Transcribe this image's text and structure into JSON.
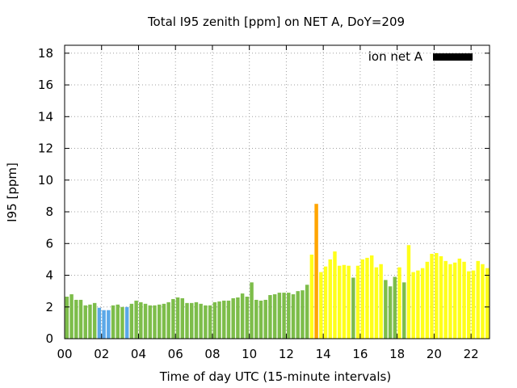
{
  "chart_data": {
    "type": "bar",
    "title": "Total I95 zenith [ppm] on NET A, DoY=209",
    "xlabel": "Time of day UTC (15-minute intervals)",
    "ylabel": "I95 [ppm]",
    "ylim": [
      0,
      18.5
    ],
    "xlim": [
      0,
      23
    ],
    "yticks": [
      "0",
      "2",
      "4",
      "6",
      "8",
      "10",
      "12",
      "14",
      "16",
      "18"
    ],
    "xticks": [
      "00",
      "02",
      "04",
      "06",
      "08",
      "10",
      "12",
      "14",
      "16",
      "18",
      "20",
      "22"
    ],
    "grid": true,
    "legend": {
      "label": "ion net A",
      "position": "top-right",
      "color": "#000000"
    },
    "colors": {
      "green": "#7dbd4a",
      "blue": "#5ba8e8",
      "yellow": "#ffff1a",
      "orange": "#ffa500"
    },
    "x": [
      0,
      0.25,
      0.5,
      0.75,
      1,
      1.25,
      1.5,
      1.75,
      2,
      2.25,
      2.5,
      2.75,
      3,
      3.25,
      3.5,
      3.75,
      4,
      4.25,
      4.5,
      4.75,
      5,
      5.25,
      5.5,
      5.75,
      6,
      6.25,
      6.5,
      6.75,
      7,
      7.25,
      7.5,
      7.75,
      8,
      8.25,
      8.5,
      8.75,
      9,
      9.25,
      9.5,
      9.75,
      10,
      10.25,
      10.5,
      10.75,
      11,
      11.25,
      11.5,
      11.75,
      12,
      12.25,
      12.5,
      12.75,
      13,
      13.25,
      13.5,
      13.75,
      14,
      14.25,
      14.5,
      14.75,
      15,
      15.25,
      15.5,
      15.75,
      16,
      16.25,
      16.5,
      16.75,
      17,
      17.25,
      17.5,
      17.75,
      18,
      18.25,
      18.5,
      18.75,
      19,
      19.25,
      19.5,
      19.75,
      20,
      20.25,
      20.5,
      20.75,
      21,
      21.25,
      21.5,
      21.75,
      22,
      22.25,
      22.5,
      22.75
    ],
    "values": [
      2.65,
      2.8,
      2.45,
      2.45,
      2.1,
      2.15,
      2.25,
      1.95,
      1.8,
      1.8,
      2.1,
      2.15,
      2.0,
      2.0,
      2.2,
      2.4,
      2.3,
      2.2,
      2.1,
      2.1,
      2.15,
      2.2,
      2.3,
      2.5,
      2.6,
      2.55,
      2.25,
      2.25,
      2.3,
      2.2,
      2.1,
      2.1,
      2.3,
      2.35,
      2.4,
      2.4,
      2.55,
      2.6,
      2.85,
      2.65,
      3.55,
      2.45,
      2.4,
      2.45,
      2.75,
      2.8,
      2.9,
      2.9,
      2.9,
      2.8,
      3.0,
      3.05,
      3.4,
      5.3,
      8.5,
      4.2,
      4.55,
      5.0,
      5.5,
      4.6,
      4.65,
      4.6,
      3.85,
      4.6,
      5.0,
      5.1,
      5.25,
      4.5,
      4.7,
      3.7,
      3.3,
      3.9,
      4.5,
      3.55,
      5.9,
      4.2,
      4.3,
      4.45,
      4.85,
      5.35,
      5.4,
      5.2,
      4.9,
      4.7,
      4.8,
      5.05,
      4.85,
      4.25,
      4.3,
      4.9,
      4.7,
      4.45
    ],
    "bar_colors": [
      "green",
      "green",
      "green",
      "green",
      "green",
      "green",
      "green",
      "blue",
      "blue",
      "blue",
      "green",
      "green",
      "green",
      "blue",
      "green",
      "green",
      "green",
      "green",
      "green",
      "green",
      "green",
      "green",
      "green",
      "green",
      "green",
      "green",
      "green",
      "green",
      "green",
      "green",
      "green",
      "green",
      "green",
      "green",
      "green",
      "green",
      "green",
      "green",
      "green",
      "green",
      "green",
      "green",
      "green",
      "green",
      "green",
      "green",
      "green",
      "green",
      "green",
      "green",
      "green",
      "green",
      "green",
      "yellow",
      "orange",
      "yellow",
      "yellow",
      "yellow",
      "yellow",
      "yellow",
      "yellow",
      "yellow",
      "green",
      "yellow",
      "yellow",
      "yellow",
      "yellow",
      "yellow",
      "yellow",
      "green",
      "green",
      "green",
      "yellow",
      "green",
      "yellow",
      "yellow",
      "yellow",
      "yellow",
      "yellow",
      "yellow",
      "yellow",
      "yellow",
      "yellow",
      "yellow",
      "yellow",
      "yellow",
      "yellow",
      "yellow",
      "yellow",
      "yellow",
      "yellow",
      "yellow"
    ]
  }
}
